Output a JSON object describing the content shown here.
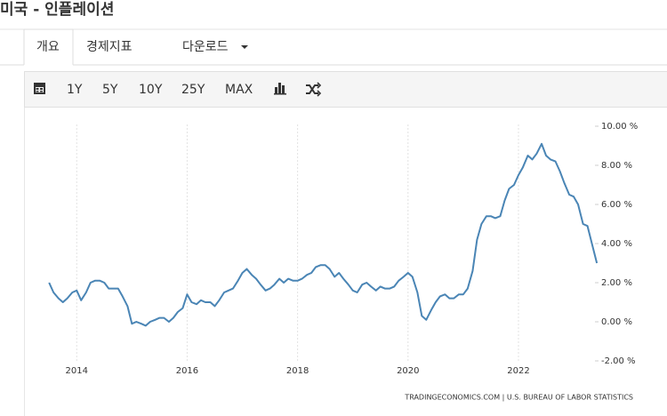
{
  "header": {
    "title": "미국 - 인플레이션"
  },
  "tabs": [
    "개요",
    "경제지표",
    "다운로드"
  ],
  "toolbar": [
    "1Y",
    "5Y",
    "10Y",
    "25Y",
    "MAX"
  ],
  "chart_data": {
    "type": "line",
    "source": "TRADINGECONOMICS.COM  |  U.S. BUREAU OF LABOR STATISTICS",
    "color": "#4a85b5",
    "grid": true,
    "xlim": [
      2013.4,
      2023.45
    ],
    "xticks": [
      2014,
      2016,
      2018,
      2020,
      2022
    ],
    "ylim": [
      -2.5,
      10.5
    ],
    "yticks": [
      {
        "value": -2,
        "label": "-2.00 %"
      },
      {
        "value": 0,
        "label": "0.00 %"
      },
      {
        "value": 2,
        "label": "2.00 %"
      },
      {
        "value": 4,
        "label": "4.00 %"
      },
      {
        "value": 6,
        "label": "6.00 %"
      },
      {
        "value": 8,
        "label": "8.00 %"
      },
      {
        "value": 10,
        "label": "10.00 %"
      }
    ],
    "x": [
      2013.5,
      2013.58,
      2013.67,
      2013.75,
      2013.83,
      2013.92,
      2014,
      2014.08,
      2014.17,
      2014.25,
      2014.33,
      2014.42,
      2014.5,
      2014.58,
      2014.67,
      2014.75,
      2014.83,
      2014.92,
      2015,
      2015.08,
      2015.17,
      2015.25,
      2015.33,
      2015.42,
      2015.5,
      2015.58,
      2015.67,
      2015.75,
      2015.83,
      2015.92,
      2016,
      2016.08,
      2016.17,
      2016.25,
      2016.33,
      2016.42,
      2016.5,
      2016.58,
      2016.67,
      2016.75,
      2016.83,
      2016.92,
      2017,
      2017.08,
      2017.17,
      2017.25,
      2017.33,
      2017.42,
      2017.5,
      2017.58,
      2017.67,
      2017.75,
      2017.83,
      2017.92,
      2018,
      2018.08,
      2018.17,
      2018.25,
      2018.33,
      2018.42,
      2018.5,
      2018.58,
      2018.67,
      2018.75,
      2018.83,
      2018.92,
      2019,
      2019.08,
      2019.17,
      2019.25,
      2019.33,
      2019.42,
      2019.5,
      2019.58,
      2019.67,
      2019.75,
      2019.83,
      2019.92,
      2020,
      2020.08,
      2020.17,
      2020.25,
      2020.33,
      2020.42,
      2020.5,
      2020.58,
      2020.67,
      2020.75,
      2020.83,
      2020.92,
      2021,
      2021.08,
      2021.17,
      2021.25,
      2021.33,
      2021.42,
      2021.5,
      2021.58,
      2021.67,
      2021.75,
      2021.83,
      2021.92,
      2022,
      2022.08,
      2022.17,
      2022.25,
      2022.33,
      2022.42,
      2022.5,
      2022.58,
      2022.67,
      2022.75,
      2022.83,
      2022.92,
      2023,
      2023.08,
      2023.17,
      2023.25,
      2023.33,
      2023.42
    ],
    "values": [
      2.0,
      1.5,
      1.2,
      1.0,
      1.2,
      1.5,
      1.6,
      1.1,
      1.5,
      2.0,
      2.1,
      2.1,
      2.0,
      1.7,
      1.7,
      1.7,
      1.3,
      0.8,
      -0.1,
      0.0,
      -0.1,
      -0.2,
      0.0,
      0.1,
      0.2,
      0.2,
      0.0,
      0.2,
      0.5,
      0.7,
      1.4,
      1.0,
      0.9,
      1.1,
      1.0,
      1.0,
      0.8,
      1.1,
      1.5,
      1.6,
      1.7,
      2.1,
      2.5,
      2.7,
      2.4,
      2.2,
      1.9,
      1.6,
      1.7,
      1.9,
      2.2,
      2.0,
      2.2,
      2.1,
      2.1,
      2.2,
      2.4,
      2.5,
      2.8,
      2.9,
      2.9,
      2.7,
      2.3,
      2.5,
      2.2,
      1.9,
      1.6,
      1.5,
      1.9,
      2.0,
      1.8,
      1.6,
      1.8,
      1.7,
      1.7,
      1.8,
      2.1,
      2.3,
      2.5,
      2.3,
      1.5,
      0.3,
      0.1,
      0.6,
      1.0,
      1.3,
      1.4,
      1.2,
      1.2,
      1.4,
      1.4,
      1.7,
      2.6,
      4.2,
      5.0,
      5.4,
      5.4,
      5.3,
      5.4,
      6.2,
      6.8,
      7.0,
      7.5,
      7.9,
      8.5,
      8.3,
      8.6,
      9.1,
      8.5,
      8.3,
      8.2,
      7.7,
      7.1,
      6.5,
      6.4,
      6.0,
      5.0,
      4.9,
      4.0,
      3.0
    ]
  }
}
